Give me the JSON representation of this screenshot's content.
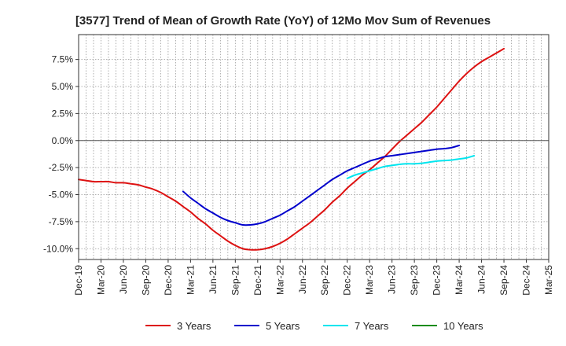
{
  "chart_data": {
    "type": "line",
    "title": "[3577]  Trend of Mean of Growth Rate (YoY) of 12Mo Mov Sum of Revenues",
    "xlabel": "",
    "ylabel": "",
    "ylim": [
      -11,
      9.8
    ],
    "grid": true,
    "legend_position": "bottom",
    "y_ticks": [
      {
        "value": 7.5,
        "label": "7.5%"
      },
      {
        "value": 5.0,
        "label": "5.0%"
      },
      {
        "value": 2.5,
        "label": "2.5%"
      },
      {
        "value": 0.0,
        "label": "0.0%"
      },
      {
        "value": -2.5,
        "label": "-2.5%"
      },
      {
        "value": -5.0,
        "label": "-5.0%"
      },
      {
        "value": -7.5,
        "label": "-7.5%"
      },
      {
        "value": -10.0,
        "label": "-10.0%"
      }
    ],
    "x_ticks": [
      "Dec-19",
      "Mar-20",
      "Jun-20",
      "Sep-20",
      "Dec-20",
      "Mar-21",
      "Jun-21",
      "Sep-21",
      "Dec-21",
      "Mar-22",
      "Jun-22",
      "Sep-22",
      "Dec-22",
      "Mar-23",
      "Jun-23",
      "Sep-23",
      "Dec-23",
      "Mar-24",
      "Jun-24",
      "Sep-24",
      "Dec-24",
      "Mar-25"
    ],
    "series": [
      {
        "name": "3 Years",
        "color": "#dd1111",
        "start_index": 0,
        "values": [
          -3.6,
          -3.7,
          -3.8,
          -3.8,
          -3.8,
          -3.9,
          -3.9,
          -4.0,
          -4.1,
          -4.3,
          -4.5,
          -4.8,
          -5.2,
          -5.6,
          -6.1,
          -6.6,
          -7.2,
          -7.7,
          -8.3,
          -8.8,
          -9.3,
          -9.7,
          -10.0,
          -10.1,
          -10.1,
          -10.0,
          -9.8,
          -9.5,
          -9.1,
          -8.6,
          -8.1,
          -7.6,
          -7.0,
          -6.4,
          -5.7,
          -5.1,
          -4.4,
          -3.8,
          -3.2,
          -2.7,
          -2.1,
          -1.5,
          -0.8,
          -0.1,
          0.5,
          1.1,
          1.7,
          2.4,
          3.1,
          3.9,
          4.7,
          5.5,
          6.2,
          6.8,
          7.3,
          7.7,
          8.1,
          8.5
        ]
      },
      {
        "name": "5 Years",
        "color": "#0000cc",
        "start_index": 14,
        "values": [
          -4.7,
          -5.3,
          -5.8,
          -6.3,
          -6.7,
          -7.1,
          -7.4,
          -7.6,
          -7.8,
          -7.8,
          -7.7,
          -7.5,
          -7.2,
          -6.9,
          -6.5,
          -6.1,
          -5.6,
          -5.1,
          -4.6,
          -4.1,
          -3.6,
          -3.2,
          -2.8,
          -2.5,
          -2.2,
          -1.9,
          -1.7,
          -1.5,
          -1.4,
          -1.3,
          -1.2,
          -1.1,
          -1.0,
          -0.9,
          -0.8,
          -0.75,
          -0.65,
          -0.45
        ]
      },
      {
        "name": "7 Years",
        "color": "#00e5ee",
        "start_index": 36,
        "values": [
          -3.5,
          -3.2,
          -3.0,
          -2.8,
          -2.6,
          -2.4,
          -2.3,
          -2.2,
          -2.15,
          -2.15,
          -2.1,
          -2.0,
          -1.9,
          -1.85,
          -1.8,
          -1.7,
          -1.6,
          -1.4
        ]
      },
      {
        "name": "10 Years",
        "color": "#1a8c1a",
        "start_index": 0,
        "values": []
      }
    ]
  }
}
